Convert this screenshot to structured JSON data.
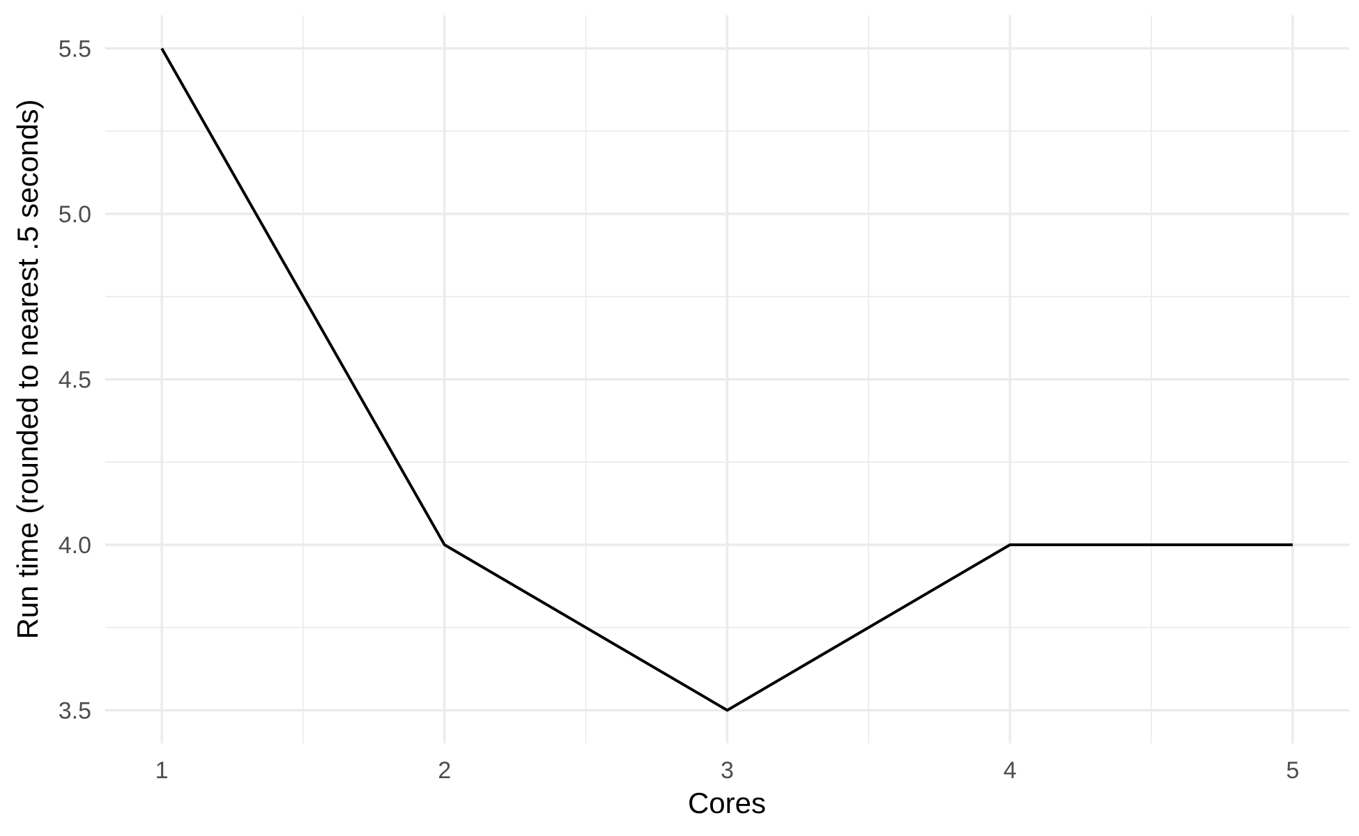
{
  "chart_data": {
    "type": "line",
    "title": "",
    "xlabel": "Cores",
    "ylabel": "Run time (rounded to nearest .5 seconds)",
    "x": [
      1,
      2,
      3,
      4,
      5
    ],
    "series": [
      {
        "values": [
          5.5,
          4.0,
          3.5,
          4.0,
          4.0
        ]
      }
    ],
    "xlim": [
      0.8,
      5.2
    ],
    "ylim": [
      3.4,
      5.6
    ],
    "x_ticks": [
      "1",
      "2",
      "3",
      "4",
      "5"
    ],
    "y_ticks": [
      "3.5",
      "4.0",
      "4.5",
      "5.0",
      "5.5"
    ],
    "x_minor": [
      1.5,
      2.5,
      3.5,
      4.5
    ],
    "y_minor": [
      3.75,
      4.25,
      4.75,
      5.25
    ],
    "grid": true,
    "legend": "none",
    "line_color": "#000000"
  }
}
